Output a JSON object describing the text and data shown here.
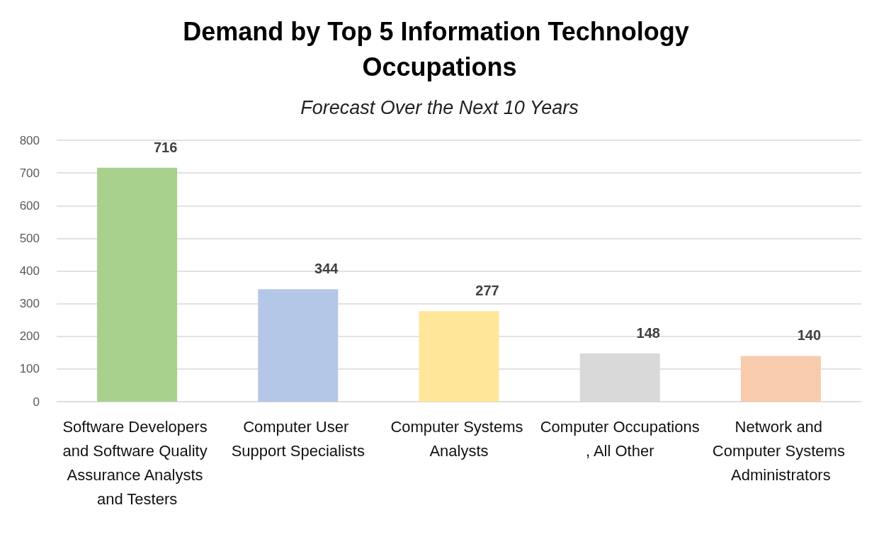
{
  "chart_data": {
    "type": "bar",
    "title": "Demand by Top 5 Information Technology Occupations",
    "subtitle": "Forecast Over the Next 10 Years",
    "categories": [
      "Software Developers and Software Quality Assurance Analysts and Testers",
      "Computer User Support Specialists",
      "Computer Systems Analysts",
      "Computer Occupations, All Other",
      "Network and Computer Systems Administrators"
    ],
    "values": [
      716,
      344,
      277,
      148,
      140
    ],
    "colors": [
      "#a9d18e",
      "#b4c7e7",
      "#ffe699",
      "#d9d9d9",
      "#f8cbad"
    ],
    "ylim": [
      0,
      800
    ],
    "yticks": [
      0,
      100,
      200,
      300,
      400,
      500,
      600,
      700,
      800
    ],
    "grid": true,
    "data_labels": true
  }
}
